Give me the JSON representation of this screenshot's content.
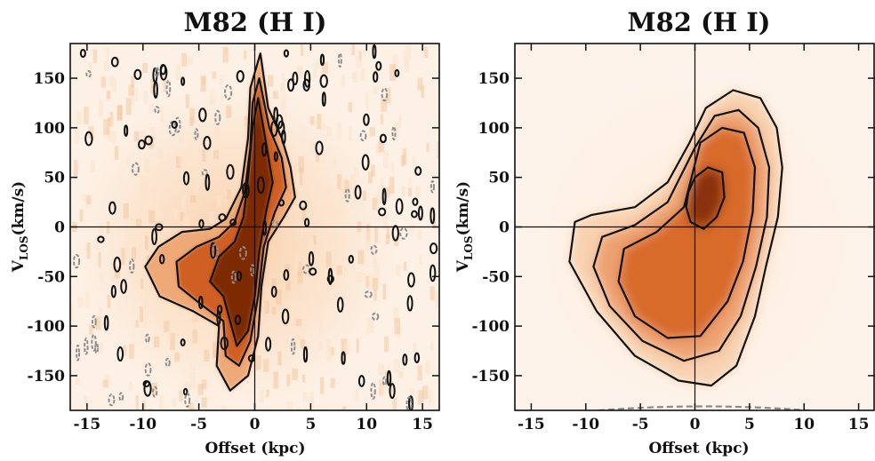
{
  "chart_data": [
    {
      "type": "heatmap",
      "title": "M82 (H I)",
      "xlabel": "Offset (kpc)",
      "ylabel_main": "V",
      "ylabel_sub": "LOS",
      "ylabel_rest": "(km/s)",
      "xlim": [
        -16.5,
        16.5
      ],
      "ylim": [
        -185,
        185
      ],
      "xticks": [
        -15,
        -10,
        -5,
        0,
        5,
        10,
        15
      ],
      "yticks": [
        -150,
        -100,
        -50,
        0,
        50,
        100,
        150
      ],
      "reference_lines": {
        "x": 0,
        "y": 0
      },
      "colormap": [
        "#ffffff",
        "#f6c59a",
        "#d86a2b",
        "#7a2c05"
      ],
      "contours": [
        {
          "level": 1,
          "points": [
            [
              0.5,
              175
            ],
            [
              1.2,
              120
            ],
            [
              2.4,
              90
            ],
            [
              3.2,
              60
            ],
            [
              3.6,
              30
            ],
            [
              2.6,
              10
            ],
            [
              1.2,
              -15
            ],
            [
              0.6,
              -60
            ],
            [
              0.3,
              -110
            ],
            [
              -0.6,
              -150
            ],
            [
              -2.2,
              -165
            ],
            [
              -3.4,
              -140
            ],
            [
              -3.2,
              -100
            ],
            [
              -5.5,
              -85
            ],
            [
              -8.5,
              -70
            ],
            [
              -9.8,
              -40
            ],
            [
              -8.6,
              -20
            ],
            [
              -6.5,
              -5
            ],
            [
              -4.0,
              -2
            ],
            [
              -2.6,
              8
            ],
            [
              -1.2,
              40
            ],
            [
              -0.6,
              90
            ],
            [
              -0.4,
              140
            ]
          ]
        },
        {
          "level": 2,
          "points": [
            [
              0.4,
              150
            ],
            [
              1.3,
              100
            ],
            [
              2.4,
              70
            ],
            [
              2.8,
              40
            ],
            [
              1.8,
              15
            ],
            [
              0.8,
              -20
            ],
            [
              0.3,
              -70
            ],
            [
              -0.4,
              -115
            ],
            [
              -1.4,
              -140
            ],
            [
              -2.6,
              -130
            ],
            [
              -2.8,
              -95
            ],
            [
              -4.6,
              -80
            ],
            [
              -6.8,
              -60
            ],
            [
              -7.0,
              -35
            ],
            [
              -5.2,
              -20
            ],
            [
              -3.2,
              -10
            ],
            [
              -1.8,
              5
            ],
            [
              -0.9,
              35
            ],
            [
              -0.4,
              80
            ],
            [
              -0.2,
              125
            ]
          ]
        },
        {
          "level": 3,
          "points": [
            [
              0.3,
              130
            ],
            [
              1.0,
              85
            ],
            [
              1.6,
              45
            ],
            [
              1.0,
              15
            ],
            [
              0.4,
              -25
            ],
            [
              0.0,
              -70
            ],
            [
              -0.6,
              -105
            ],
            [
              -1.6,
              -120
            ],
            [
              -2.2,
              -95
            ],
            [
              -2.8,
              -70
            ],
            [
              -4.0,
              -55
            ],
            [
              -3.2,
              -30
            ],
            [
              -1.8,
              -15
            ],
            [
              -1.0,
              10
            ],
            [
              -0.6,
              50
            ],
            [
              -0.2,
              100
            ]
          ]
        }
      ]
    },
    {
      "type": "heatmap",
      "title": "M82 (H I)",
      "xlabel": "Offset (kpc)",
      "ylabel_main": "V",
      "ylabel_sub": "LOS",
      "ylabel_rest": "(km/s)",
      "xlim": [
        -16.5,
        16.5
      ],
      "ylim": [
        -185,
        185
      ],
      "xticks": [
        -15,
        -10,
        -5,
        0,
        5,
        10,
        15
      ],
      "yticks": [
        -150,
        -100,
        -50,
        0,
        50,
        100,
        150
      ],
      "reference_lines": {
        "x": 0,
        "y": 0
      },
      "colormap": [
        "#ffffff",
        "#f6c59a",
        "#d86a2b",
        "#7a2c05"
      ],
      "contours": [
        {
          "level": 1,
          "points": [
            [
              -0.5,
              85
            ],
            [
              1.0,
              120
            ],
            [
              3.5,
              138
            ],
            [
              6.0,
              130
            ],
            [
              7.5,
              100
            ],
            [
              8.0,
              60
            ],
            [
              7.6,
              10
            ],
            [
              6.5,
              -40
            ],
            [
              5.5,
              -90
            ],
            [
              3.8,
              -140
            ],
            [
              1.5,
              -160
            ],
            [
              -1.5,
              -155
            ],
            [
              -5.5,
              -130
            ],
            [
              -9.0,
              -85
            ],
            [
              -11.5,
              -35
            ],
            [
              -11.0,
              5
            ],
            [
              -9.5,
              12
            ],
            [
              -5.5,
              20
            ],
            [
              -2.5,
              45
            ]
          ]
        },
        {
          "level": 2,
          "points": [
            [
              0.0,
              80
            ],
            [
              1.8,
              112
            ],
            [
              4.0,
              118
            ],
            [
              5.8,
              100
            ],
            [
              6.8,
              60
            ],
            [
              6.6,
              10
            ],
            [
              5.6,
              -40
            ],
            [
              4.2,
              -90
            ],
            [
              2.2,
              -125
            ],
            [
              -1.0,
              -135
            ],
            [
              -4.8,
              -115
            ],
            [
              -7.8,
              -80
            ],
            [
              -9.3,
              -40
            ],
            [
              -8.5,
              -10
            ],
            [
              -5.5,
              2
            ],
            [
              -2.5,
              25
            ]
          ]
        },
        {
          "level": 3,
          "points": [
            [
              0.5,
              85
            ],
            [
              2.5,
              100
            ],
            [
              4.5,
              95
            ],
            [
              5.5,
              60
            ],
            [
              5.3,
              15
            ],
            [
              4.4,
              -35
            ],
            [
              3.0,
              -75
            ],
            [
              0.5,
              -110
            ],
            [
              -2.5,
              -112
            ],
            [
              -5.5,
              -90
            ],
            [
              -7.0,
              -55
            ],
            [
              -6.5,
              -22
            ],
            [
              -3.5,
              -5
            ],
            [
              -1.0,
              20
            ]
          ]
        },
        {
          "level": 4,
          "points": [
            [
              -0.6,
              35
            ],
            [
              0.0,
              50
            ],
            [
              1.2,
              60
            ],
            [
              2.5,
              55
            ],
            [
              2.7,
              30
            ],
            [
              2.0,
              10
            ],
            [
              0.8,
              -2
            ],
            [
              -0.4,
              5
            ],
            [
              -0.8,
              20
            ]
          ]
        }
      ]
    }
  ]
}
